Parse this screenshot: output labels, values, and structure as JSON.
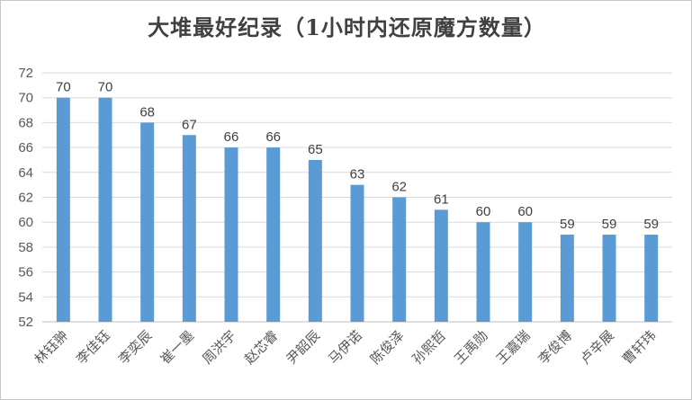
{
  "chart_data": {
    "type": "bar",
    "title": "大堆最好纪录（1小时内还原魔方数量）",
    "categories": [
      "林钰翀",
      "李佳钰",
      "李奕辰",
      "崔一墨",
      "周洪宇",
      "赵芯睿",
      "尹韶辰",
      "马伊诺",
      "陈俊泽",
      "孙熙哲",
      "王禹勋",
      "王嘉瑞",
      "李俊博",
      "卢辛展",
      "曹轩玮"
    ],
    "values": [
      70,
      70,
      68,
      67,
      66,
      66,
      65,
      63,
      62,
      61,
      60,
      60,
      59,
      59,
      59
    ],
    "ylim": [
      52,
      72
    ],
    "yticks": [
      52,
      54,
      56,
      58,
      60,
      62,
      64,
      66,
      68,
      70,
      72
    ],
    "grid": true,
    "data_labels": true,
    "colors": {
      "bar": "#5b9bd5",
      "grid": "#d9d9d9",
      "tick_label": "#595959",
      "data_label": "#404040"
    }
  }
}
